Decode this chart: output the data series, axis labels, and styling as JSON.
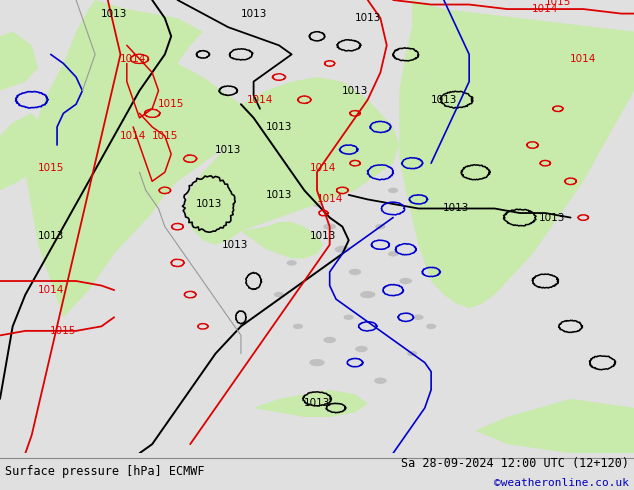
{
  "title_left": "Surface pressure [hPa] ECMWF",
  "title_right": "Sa 28-09-2024 12:00 UTC (12+120)",
  "credit": "©weatheronline.co.uk",
  "bg_color": "#e0e0e0",
  "map_bg_color": "#d0d0d0",
  "green_fill_color": "#c8eaaa",
  "gray_land_color": "#b8b8b8",
  "label_fontsize": 7.5,
  "title_fontsize": 8.5,
  "credit_color": "#0000bb",
  "BLK": "#000000",
  "RED": "#dd0000",
  "BLUE": "#0000cc",
  "GRAY": "#999999",
  "fig_width": 6.34,
  "fig_height": 4.9
}
